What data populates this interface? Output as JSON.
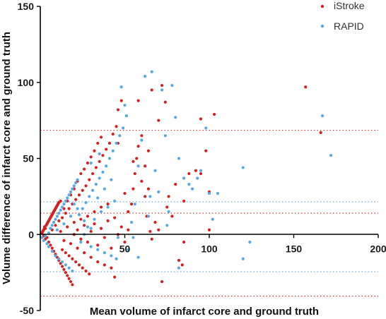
{
  "chart_data": {
    "type": "scatter",
    "xlabel": "Mean volume of infarct core and ground truth",
    "ylabel": "Volume difference of infarct core and ground truth",
    "xlim": [
      0,
      200
    ],
    "ylim": [
      -50,
      150
    ],
    "x_ticks": [
      0,
      50,
      100,
      150,
      200
    ],
    "x_tick_labels": [
      "",
      "50",
      "100",
      "150",
      "200"
    ],
    "y_ticks": [
      -50,
      0,
      50,
      100,
      150
    ],
    "y_tick_labels": [
      "-50",
      "0",
      "50",
      "100",
      "150"
    ],
    "grid": false,
    "legend_position": "top-right",
    "series": [
      {
        "name": "iStroke",
        "color": "#d42020",
        "reference_lines": [
          68.5,
          14.0,
          -40.5
        ],
        "points": [
          [
            1,
            1
          ],
          [
            1.5,
            2
          ],
          [
            2,
            3
          ],
          [
            2.5,
            5
          ],
          [
            3,
            4
          ],
          [
            3.5,
            6
          ],
          [
            4,
            7
          ],
          [
            4.5,
            8
          ],
          [
            5,
            9
          ],
          [
            5.5,
            10
          ],
          [
            6,
            11
          ],
          [
            6.5,
            12
          ],
          [
            7,
            13
          ],
          [
            7.5,
            14
          ],
          [
            8,
            15
          ],
          [
            8.5,
            16
          ],
          [
            9,
            17
          ],
          [
            9.5,
            18
          ],
          [
            10,
            19
          ],
          [
            10.5,
            20
          ],
          [
            11,
            21
          ],
          [
            12,
            22
          ],
          [
            2,
            -1
          ],
          [
            3,
            -3
          ],
          [
            4,
            -2
          ],
          [
            5,
            -5
          ],
          [
            6,
            -7
          ],
          [
            7,
            -9
          ],
          [
            8,
            -11
          ],
          [
            9,
            -13
          ],
          [
            10,
            -15
          ],
          [
            11,
            -17
          ],
          [
            12,
            -19
          ],
          [
            13,
            -21
          ],
          [
            14,
            -23
          ],
          [
            15,
            -25
          ],
          [
            16,
            -27
          ],
          [
            17,
            -29
          ],
          [
            18,
            -31
          ],
          [
            19,
            -33
          ],
          [
            7,
            3
          ],
          [
            9,
            6
          ],
          [
            11,
            9
          ],
          [
            13,
            11
          ],
          [
            15,
            14
          ],
          [
            17,
            17
          ],
          [
            19,
            20
          ],
          [
            21,
            23
          ],
          [
            23,
            26
          ],
          [
            25,
            29
          ],
          [
            27,
            32
          ],
          [
            29,
            36
          ],
          [
            31,
            40
          ],
          [
            33,
            44
          ],
          [
            35,
            48
          ],
          [
            37,
            52
          ],
          [
            39,
            56
          ],
          [
            41,
            60
          ],
          [
            43,
            66
          ],
          [
            45,
            71
          ],
          [
            46,
            82
          ],
          [
            48,
            88
          ],
          [
            12,
            2
          ],
          [
            14,
            -4
          ],
          [
            16,
            5
          ],
          [
            18,
            -6
          ],
          [
            20,
            8
          ],
          [
            22,
            -9
          ],
          [
            24,
            10
          ],
          [
            26,
            -12
          ],
          [
            28,
            12
          ],
          [
            30,
            -15
          ],
          [
            32,
            15
          ],
          [
            34,
            -18
          ],
          [
            36,
            18
          ],
          [
            38,
            -20
          ],
          [
            40,
            20
          ],
          [
            42,
            -22
          ],
          [
            14,
            17
          ],
          [
            16,
            22
          ],
          [
            18,
            26
          ],
          [
            20,
            30
          ],
          [
            22,
            35
          ],
          [
            24,
            40
          ],
          [
            26,
            43
          ],
          [
            28,
            47
          ],
          [
            30,
            51
          ],
          [
            32,
            55
          ],
          [
            34,
            60
          ],
          [
            36,
            64
          ],
          [
            13,
            -10
          ],
          [
            15,
            -12
          ],
          [
            17,
            -14
          ],
          [
            19,
            -16
          ],
          [
            21,
            -18
          ],
          [
            23,
            -20
          ],
          [
            25,
            -22
          ],
          [
            27,
            -24
          ],
          [
            29,
            -26
          ],
          [
            20,
            0
          ],
          [
            22,
            3
          ],
          [
            24,
            -3
          ],
          [
            26,
            6
          ],
          [
            28,
            -5
          ],
          [
            30,
            2
          ],
          [
            32,
            7
          ],
          [
            34,
            -7
          ],
          [
            36,
            4
          ],
          [
            38,
            -2
          ],
          [
            40,
            9
          ],
          [
            42,
            -9
          ],
          [
            44,
            11
          ],
          [
            46,
            0
          ],
          [
            48,
            5
          ],
          [
            50,
            -5
          ],
          [
            52,
            3
          ],
          [
            52,
            15
          ],
          [
            54,
            20
          ],
          [
            55,
            30
          ],
          [
            56,
            40
          ],
          [
            57,
            50
          ],
          [
            58,
            58
          ],
          [
            60,
            35
          ],
          [
            62,
            25
          ],
          [
            63,
            12
          ],
          [
            65,
            2
          ],
          [
            66,
            -3
          ],
          [
            68,
            8
          ],
          [
            60,
            65
          ],
          [
            62,
            45
          ],
          [
            64,
            55
          ],
          [
            66,
            95
          ],
          [
            70,
            75
          ],
          [
            72,
            98
          ],
          [
            74,
            87
          ],
          [
            70,
            3
          ],
          [
            72,
            -31
          ],
          [
            75,
            18
          ],
          [
            80,
            33
          ],
          [
            85,
            22
          ],
          [
            88,
            40
          ],
          [
            92,
            42
          ],
          [
            95,
            40
          ],
          [
            98,
            55
          ],
          [
            100,
            28
          ],
          [
            103,
            79
          ],
          [
            85,
            -5
          ],
          [
            95,
            76
          ],
          [
            100,
            3
          ],
          [
            157,
            97
          ],
          [
            166,
            67
          ],
          [
            44,
            -28
          ],
          [
            46,
            60
          ],
          [
            50,
            27
          ],
          [
            55,
            48
          ],
          [
            58,
            88
          ],
          [
            64,
            30
          ],
          [
            76,
            25
          ],
          [
            78,
            12
          ],
          [
            82,
            -17
          ],
          [
            84,
            -20
          ]
        ]
      },
      {
        "name": "RAPID",
        "color": "#5aa8e0",
        "reference_lines": [
          21.5,
          -24.5
        ],
        "points": [
          [
            1,
            -2
          ],
          [
            2,
            -4
          ],
          [
            3,
            -1
          ],
          [
            4,
            -6
          ],
          [
            5,
            1
          ],
          [
            6,
            4
          ],
          [
            7,
            6
          ],
          [
            8,
            8
          ],
          [
            9,
            10
          ],
          [
            10,
            12
          ],
          [
            11,
            14
          ],
          [
            12,
            16
          ],
          [
            13,
            18
          ],
          [
            14,
            20
          ],
          [
            15,
            22
          ],
          [
            16,
            24
          ],
          [
            17,
            26
          ],
          [
            18,
            28
          ],
          [
            19,
            30
          ],
          [
            20,
            32
          ],
          [
            21,
            34
          ],
          [
            22,
            36
          ],
          [
            5,
            -8
          ],
          [
            7,
            -11
          ],
          [
            9,
            -14
          ],
          [
            11,
            -16
          ],
          [
            13,
            -18
          ],
          [
            15,
            -20
          ],
          [
            17,
            -22
          ],
          [
            19,
            -24
          ],
          [
            23,
            13
          ],
          [
            25,
            17
          ],
          [
            27,
            21
          ],
          [
            29,
            25
          ],
          [
            31,
            29
          ],
          [
            33,
            33
          ],
          [
            35,
            37
          ],
          [
            37,
            41
          ],
          [
            39,
            45
          ],
          [
            41,
            50
          ],
          [
            43,
            55
          ],
          [
            45,
            60
          ],
          [
            47,
            65
          ],
          [
            49,
            70
          ],
          [
            51,
            78
          ],
          [
            48,
            97
          ],
          [
            50,
            85
          ],
          [
            24,
            -5
          ],
          [
            26,
            0
          ],
          [
            28,
            5
          ],
          [
            30,
            -8
          ],
          [
            32,
            10
          ],
          [
            34,
            -10
          ],
          [
            36,
            15
          ],
          [
            38,
            -12
          ],
          [
            40,
            18
          ],
          [
            42,
            -14
          ],
          [
            44,
            22
          ],
          [
            46,
            -2
          ],
          [
            52,
            -10
          ],
          [
            54,
            8
          ],
          [
            56,
            20
          ],
          [
            58,
            45
          ],
          [
            60,
            62
          ],
          [
            62,
            104
          ],
          [
            65,
            25
          ],
          [
            66,
            107
          ],
          [
            68,
            42
          ],
          [
            72,
            95
          ],
          [
            74,
            65
          ],
          [
            76,
            15
          ],
          [
            78,
            98
          ],
          [
            80,
            77
          ],
          [
            82,
            50
          ],
          [
            85,
            37
          ],
          [
            88,
            33
          ],
          [
            90,
            30
          ],
          [
            93,
            37
          ],
          [
            95,
            42
          ],
          [
            98,
            70
          ],
          [
            100,
            27
          ],
          [
            102,
            10
          ],
          [
            105,
            27
          ],
          [
            120,
            44
          ],
          [
            124,
            -5
          ],
          [
            120,
            -16
          ],
          [
            167,
            78
          ],
          [
            172,
            52
          ],
          [
            45,
            -16
          ],
          [
            55,
            -2
          ],
          [
            58,
            -15
          ],
          [
            64,
            12
          ],
          [
            70,
            28
          ],
          [
            75,
            6
          ],
          [
            82,
            -22
          ],
          [
            10,
            3
          ],
          [
            14,
            7
          ],
          [
            18,
            12
          ],
          [
            22,
            17
          ],
          [
            26,
            9
          ],
          [
            30,
            4
          ],
          [
            34,
            24
          ],
          [
            38,
            30
          ],
          [
            42,
            36
          ],
          [
            30,
            47
          ],
          [
            35,
            53
          ],
          [
            20,
            20
          ]
        ]
      }
    ]
  }
}
